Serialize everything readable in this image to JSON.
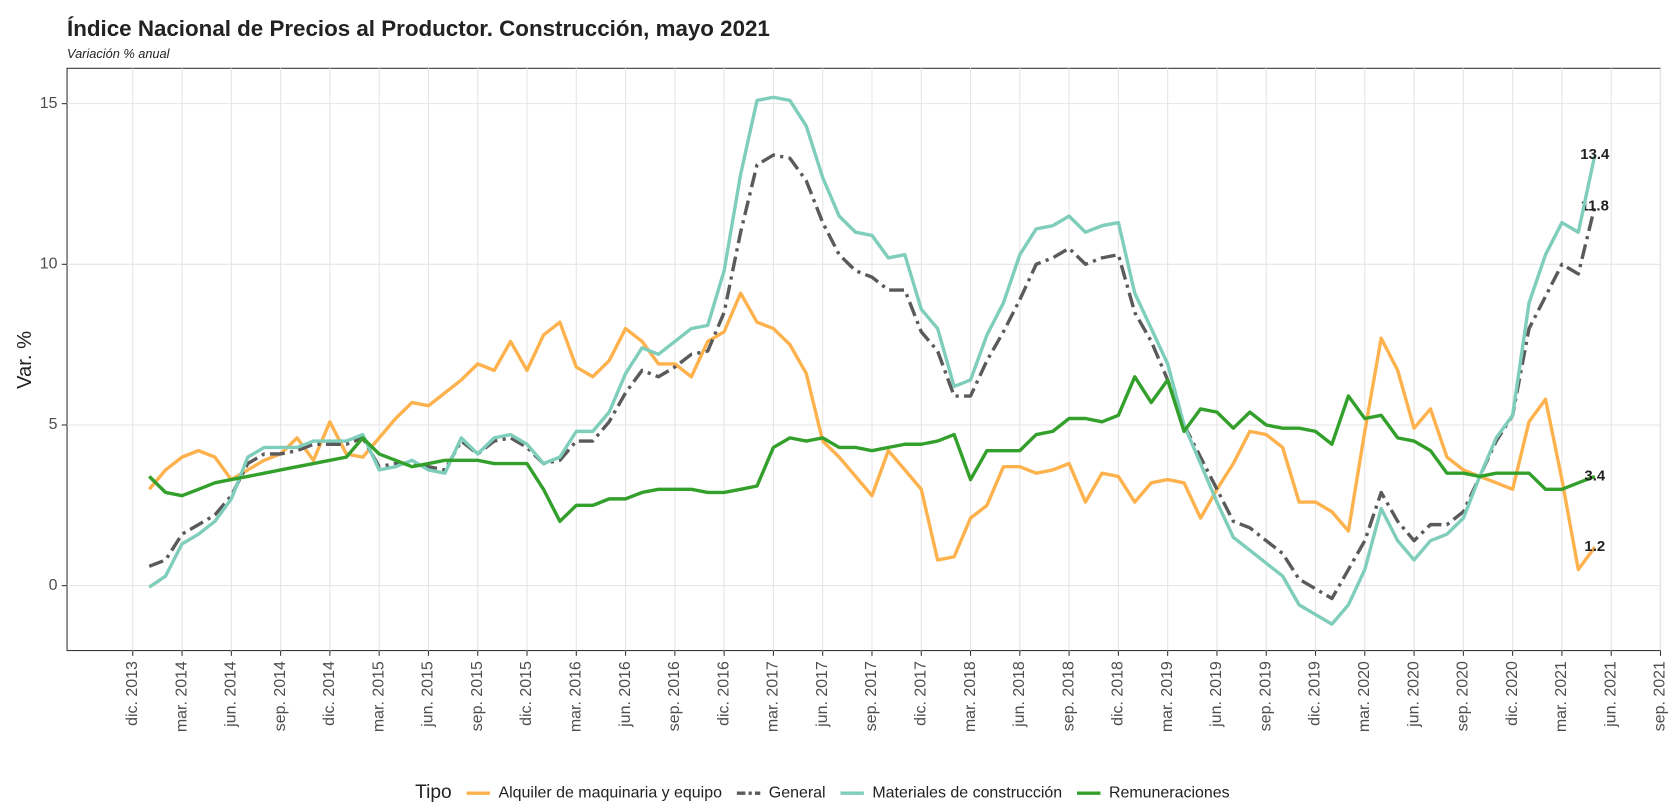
{
  "chart_data": {
    "type": "line",
    "title": "Índice Nacional de Precios al Productor. Construcción, mayo 2021",
    "subtitle": "Variación % anual",
    "y_label": "Var. %",
    "legend_title": "Tipo",
    "legend_position": "bottom",
    "grid": true,
    "label_last": true,
    "x": [
      "2014-01",
      "2014-02",
      "2014-03",
      "2014-04",
      "2014-05",
      "2014-06",
      "2014-07",
      "2014-08",
      "2014-09",
      "2014-10",
      "2014-11",
      "2014-12",
      "2015-01",
      "2015-02",
      "2015-03",
      "2015-04",
      "2015-05",
      "2015-06",
      "2015-07",
      "2015-08",
      "2015-09",
      "2015-10",
      "2015-11",
      "2015-12",
      "2016-01",
      "2016-02",
      "2016-03",
      "2016-04",
      "2016-05",
      "2016-06",
      "2016-07",
      "2016-08",
      "2016-09",
      "2016-10",
      "2016-11",
      "2016-12",
      "2017-01",
      "2017-02",
      "2017-03",
      "2017-04",
      "2017-05",
      "2017-06",
      "2017-07",
      "2017-08",
      "2017-09",
      "2017-10",
      "2017-11",
      "2017-12",
      "2018-01",
      "2018-02",
      "2018-03",
      "2018-04",
      "2018-05",
      "2018-06",
      "2018-07",
      "2018-08",
      "2018-09",
      "2018-10",
      "2018-11",
      "2018-12",
      "2019-01",
      "2019-02",
      "2019-03",
      "2019-04",
      "2019-05",
      "2019-06",
      "2019-07",
      "2019-08",
      "2019-09",
      "2019-10",
      "2019-11",
      "2019-12",
      "2020-01",
      "2020-02",
      "2020-03",
      "2020-04",
      "2020-05",
      "2020-06",
      "2020-07",
      "2020-08",
      "2020-09",
      "2020-10",
      "2020-11",
      "2020-12",
      "2021-01",
      "2021-02",
      "2021-03",
      "2021-04",
      "2021-05"
    ],
    "xlim": [
      "2013-08",
      "2021-09"
    ],
    "xticks": [
      {
        "value": "2013-12",
        "label": "dic. 2013"
      },
      {
        "value": "2014-03",
        "label": "mar. 2014"
      },
      {
        "value": "2014-06",
        "label": "jun. 2014"
      },
      {
        "value": "2014-09",
        "label": "sep. 2014"
      },
      {
        "value": "2014-12",
        "label": "dic. 2014"
      },
      {
        "value": "2015-03",
        "label": "mar. 2015"
      },
      {
        "value": "2015-06",
        "label": "jun. 2015"
      },
      {
        "value": "2015-09",
        "label": "sep. 2015"
      },
      {
        "value": "2015-12",
        "label": "dic. 2015"
      },
      {
        "value": "2016-03",
        "label": "mar. 2016"
      },
      {
        "value": "2016-06",
        "label": "jun. 2016"
      },
      {
        "value": "2016-09",
        "label": "sep. 2016"
      },
      {
        "value": "2016-12",
        "label": "dic. 2016"
      },
      {
        "value": "2017-03",
        "label": "mar. 2017"
      },
      {
        "value": "2017-06",
        "label": "jun. 2017"
      },
      {
        "value": "2017-09",
        "label": "sep. 2017"
      },
      {
        "value": "2017-12",
        "label": "dic. 2017"
      },
      {
        "value": "2018-03",
        "label": "mar. 2018"
      },
      {
        "value": "2018-06",
        "label": "jun. 2018"
      },
      {
        "value": "2018-09",
        "label": "sep. 2018"
      },
      {
        "value": "2018-12",
        "label": "dic. 2018"
      },
      {
        "value": "2019-03",
        "label": "mar. 2019"
      },
      {
        "value": "2019-06",
        "label": "jun. 2019"
      },
      {
        "value": "2019-09",
        "label": "sep. 2019"
      },
      {
        "value": "2019-12",
        "label": "dic. 2019"
      },
      {
        "value": "2020-03",
        "label": "mar. 2020"
      },
      {
        "value": "2020-06",
        "label": "jun. 2020"
      },
      {
        "value": "2020-09",
        "label": "sep. 2020"
      },
      {
        "value": "2020-12",
        "label": "dic. 2020"
      },
      {
        "value": "2021-03",
        "label": "mar. 2021"
      },
      {
        "value": "2021-06",
        "label": "jun. 2021"
      },
      {
        "value": "2021-09",
        "label": "sep. 2021"
      }
    ],
    "ylim": [
      -2.02,
      16.1
    ],
    "yticks": [
      0,
      5,
      10,
      15
    ],
    "series": [
      {
        "name": "Alquiler de maquinaria y equipo",
        "color": "#fdb24e",
        "dash": "solid",
        "values": [
          3.0,
          3.6,
          4.0,
          4.2,
          4.0,
          3.3,
          3.6,
          3.9,
          4.1,
          4.6,
          3.9,
          5.1,
          4.1,
          4.0,
          4.6,
          5.2,
          5.7,
          5.6,
          6.0,
          6.4,
          6.9,
          6.7,
          7.6,
          6.7,
          7.8,
          8.2,
          6.8,
          6.5,
          7.0,
          8.0,
          7.6,
          6.9,
          6.9,
          6.5,
          7.6,
          7.9,
          9.1,
          8.2,
          8.0,
          7.5,
          6.6,
          4.5,
          4.0,
          3.4,
          2.8,
          4.2,
          3.6,
          3.0,
          0.8,
          0.9,
          2.1,
          2.5,
          3.7,
          3.7,
          3.5,
          3.6,
          3.8,
          2.6,
          3.5,
          3.4,
          2.6,
          3.2,
          3.3,
          3.2,
          2.1,
          3.0,
          3.8,
          4.8,
          4.7,
          4.3,
          2.6,
          2.6,
          2.3,
          1.7,
          4.8,
          7.7,
          6.7,
          4.9,
          5.5,
          4.0,
          3.6,
          3.4,
          3.2,
          3.0,
          5.1,
          5.8,
          3.3,
          0.5,
          1.2
        ]
      },
      {
        "name": "General",
        "color": "#5a5a5a",
        "dash": "dashdot",
        "values": [
          0.6,
          0.8,
          1.6,
          1.9,
          2.2,
          2.8,
          3.8,
          4.1,
          4.1,
          4.2,
          4.4,
          4.4,
          4.4,
          4.6,
          3.7,
          3.8,
          3.8,
          3.7,
          3.6,
          4.5,
          4.1,
          4.5,
          4.6,
          4.3,
          3.8,
          3.9,
          4.5,
          4.5,
          5.1,
          6.0,
          6.7,
          6.5,
          6.8,
          7.2,
          7.3,
          8.5,
          11.0,
          13.1,
          13.4,
          13.3,
          12.6,
          11.3,
          10.3,
          9.8,
          9.6,
          9.2,
          9.2,
          7.9,
          7.3,
          5.9,
          5.9,
          7.0,
          7.9,
          8.9,
          10.0,
          10.2,
          10.5,
          10.0,
          10.2,
          10.3,
          8.5,
          7.6,
          6.4,
          5.0,
          4.0,
          3.0,
          2.0,
          1.8,
          1.4,
          1.0,
          0.2,
          -0.1,
          -0.4,
          0.5,
          1.4,
          2.9,
          2.0,
          1.4,
          1.9,
          1.9,
          2.3,
          3.4,
          4.5,
          5.3,
          8.0,
          9.0,
          10.0,
          9.7,
          11.8
        ]
      },
      {
        "name": "Materiales de construcción",
        "color": "#7fcdbb",
        "dash": "solid",
        "values": [
          -0.05,
          0.3,
          1.3,
          1.6,
          2.0,
          2.7,
          4.0,
          4.3,
          4.3,
          4.3,
          4.5,
          4.5,
          4.5,
          4.7,
          3.6,
          3.7,
          3.9,
          3.6,
          3.5,
          4.6,
          4.1,
          4.6,
          4.7,
          4.4,
          3.8,
          4.0,
          4.8,
          4.8,
          5.4,
          6.6,
          7.4,
          7.2,
          7.6,
          8.0,
          8.1,
          9.8,
          12.8,
          15.1,
          15.2,
          15.1,
          14.3,
          12.7,
          11.5,
          11.0,
          10.9,
          10.2,
          10.3,
          8.6,
          8.0,
          6.2,
          6.4,
          7.8,
          8.8,
          10.3,
          11.1,
          11.2,
          11.5,
          11.0,
          11.2,
          11.3,
          9.1,
          8.0,
          6.9,
          5.0,
          3.8,
          2.6,
          1.5,
          1.1,
          0.7,
          0.3,
          -0.6,
          -0.9,
          -1.2,
          -0.6,
          0.5,
          2.4,
          1.4,
          0.8,
          1.4,
          1.6,
          2.1,
          3.4,
          4.6,
          5.3,
          8.8,
          10.3,
          11.3,
          11.0,
          13.4
        ]
      },
      {
        "name": "Remuneraciones",
        "color": "#33a02c",
        "dash": "solid",
        "values": [
          3.4,
          2.9,
          2.8,
          3.0,
          3.2,
          3.3,
          3.4,
          3.5,
          3.6,
          3.7,
          3.8,
          3.9,
          4.0,
          4.6,
          4.1,
          3.9,
          3.7,
          3.8,
          3.9,
          3.9,
          3.9,
          3.8,
          3.8,
          3.8,
          3.0,
          2.0,
          2.5,
          2.5,
          2.7,
          2.7,
          2.9,
          3.0,
          3.0,
          3.0,
          2.9,
          2.9,
          3.0,
          3.1,
          4.3,
          4.6,
          4.5,
          4.6,
          4.3,
          4.3,
          4.2,
          4.3,
          4.4,
          4.4,
          4.5,
          4.7,
          3.3,
          4.2,
          4.2,
          4.2,
          4.7,
          4.8,
          5.2,
          5.2,
          5.1,
          5.3,
          6.5,
          5.7,
          6.4,
          4.8,
          5.5,
          5.4,
          4.9,
          5.4,
          5.0,
          4.9,
          4.9,
          4.8,
          4.4,
          5.9,
          5.2,
          5.3,
          4.6,
          4.5,
          4.2,
          3.5,
          3.5,
          3.4,
          3.5,
          3.5,
          3.5,
          3.0,
          3.0,
          3.2,
          3.4
        ]
      }
    ]
  }
}
